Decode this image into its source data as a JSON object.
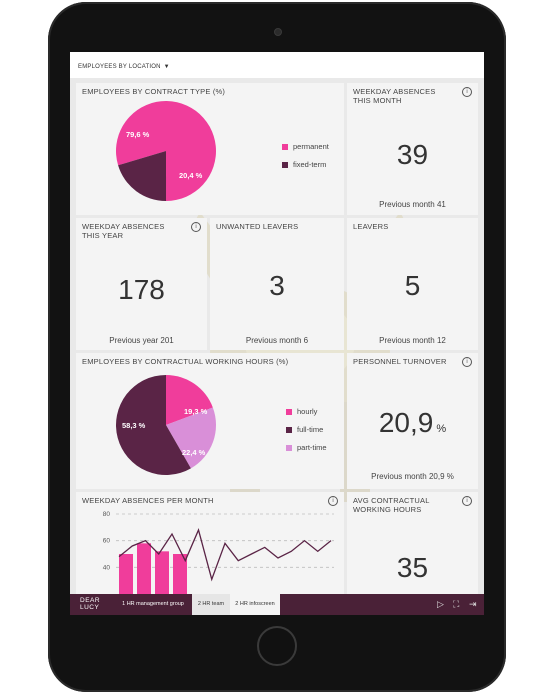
{
  "filter": {
    "label": "EMPLOYEES BY LOCATION"
  },
  "tiles": {
    "contract_type": {
      "title": "EMPLOYEES BY CONTRACT TYPE (%)",
      "slices": [
        {
          "label": "79,6 %",
          "value": 79.6,
          "color": "#f03d9b"
        },
        {
          "label": "20,4 %",
          "value": 20.4,
          "color": "#5a2446"
        }
      ],
      "legend": [
        "permanent",
        "fixed-term"
      ]
    },
    "weekday_absences_month": {
      "title": "WEEKDAY ABSENCES THIS MONTH",
      "value": "39",
      "prev": "Previous month 41"
    },
    "weekday_absences_year": {
      "title": "WEEKDAY ABSENCES THIS YEAR",
      "value": "178",
      "prev": "Previous year 201"
    },
    "unwanted_leavers": {
      "title": "UNWANTED LEAVERS",
      "value": "3",
      "prev": "Previous month 6"
    },
    "leavers": {
      "title": "LEAVERS",
      "value": "5",
      "prev": "Previous month 12"
    },
    "working_hours": {
      "title": "EMPLOYEES BY CONTRACTUAL WORKING HOURS (%)",
      "slices": [
        {
          "label": "19,3 %",
          "value": 19.3,
          "color": "#f03d9b"
        },
        {
          "label": "22,4 %",
          "value": 22.4,
          "color": "#d98fd8"
        },
        {
          "label": "58,3 %",
          "value": 58.3,
          "color": "#5a2446"
        }
      ],
      "legend": [
        "hourly",
        "full-time",
        "part-time"
      ],
      "legend_colors": [
        "#f03d9b",
        "#5a2446",
        "#d98fd8"
      ]
    },
    "personnel_turnover": {
      "title": "PERSONNEL TURNOVER",
      "value": "20,9",
      "unit": "%",
      "prev": "Previous month 20,9 %"
    },
    "absences_per_month": {
      "title": "WEEKDAY ABSENCES PER MONTH"
    },
    "avg_hours": {
      "title": "AVG CONTRACTUAL WORKING HOURS",
      "value": "35"
    }
  },
  "chart_data": {
    "type": "bar",
    "title": "WEEKDAY ABSENCES PER MONTH",
    "ylim": [
      20,
      80
    ],
    "yticks": [
      40,
      60,
      80
    ],
    "grid": true,
    "bars": [
      50,
      58,
      52,
      50
    ],
    "line": [
      48,
      56,
      60,
      50,
      65,
      45,
      68,
      31,
      58,
      45,
      50,
      55,
      47,
      52,
      60,
      52,
      60
    ]
  },
  "bottom": {
    "logo": [
      "DEAR",
      "LUCY"
    ],
    "tabs": [
      "1 HR management group",
      "2 HR team",
      "2 HR infoscreen"
    ]
  },
  "colors": {
    "accent": "#f03d9b",
    "dark": "#5a2446",
    "bar": "#4a2137"
  }
}
